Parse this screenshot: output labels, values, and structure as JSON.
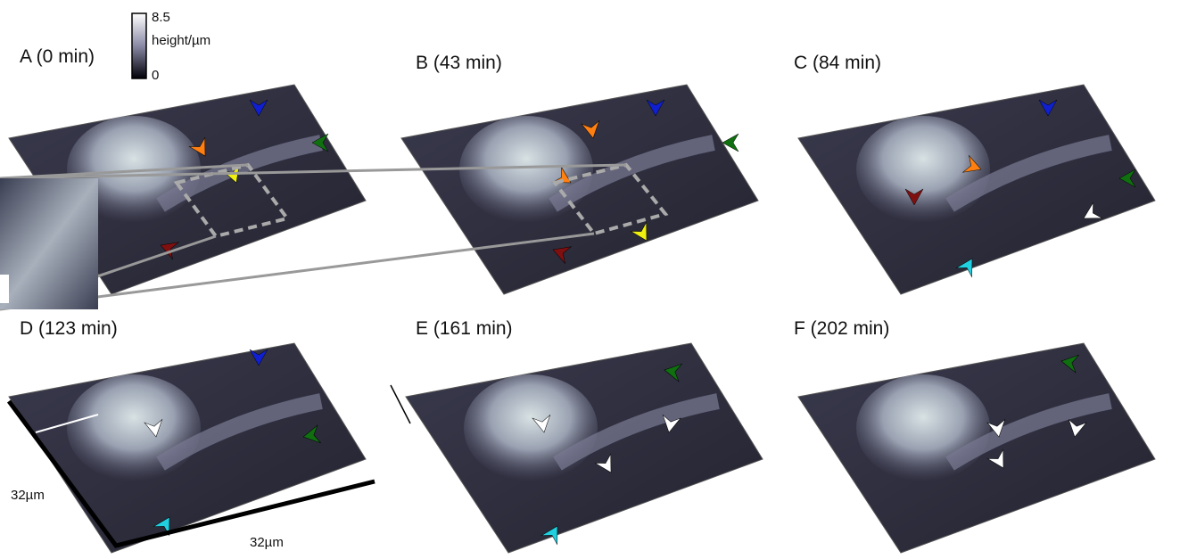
{
  "colorbar": {
    "max": "8.5",
    "label": "height/µm",
    "min": "0"
  },
  "panels": [
    "A (0 min)",
    "B (43 min)",
    "C (84 min)",
    "D (123 min)",
    "E (161 min)",
    "F (202 min)"
  ],
  "scale": {
    "side": "32µm",
    "bottom": "32µm"
  }
}
